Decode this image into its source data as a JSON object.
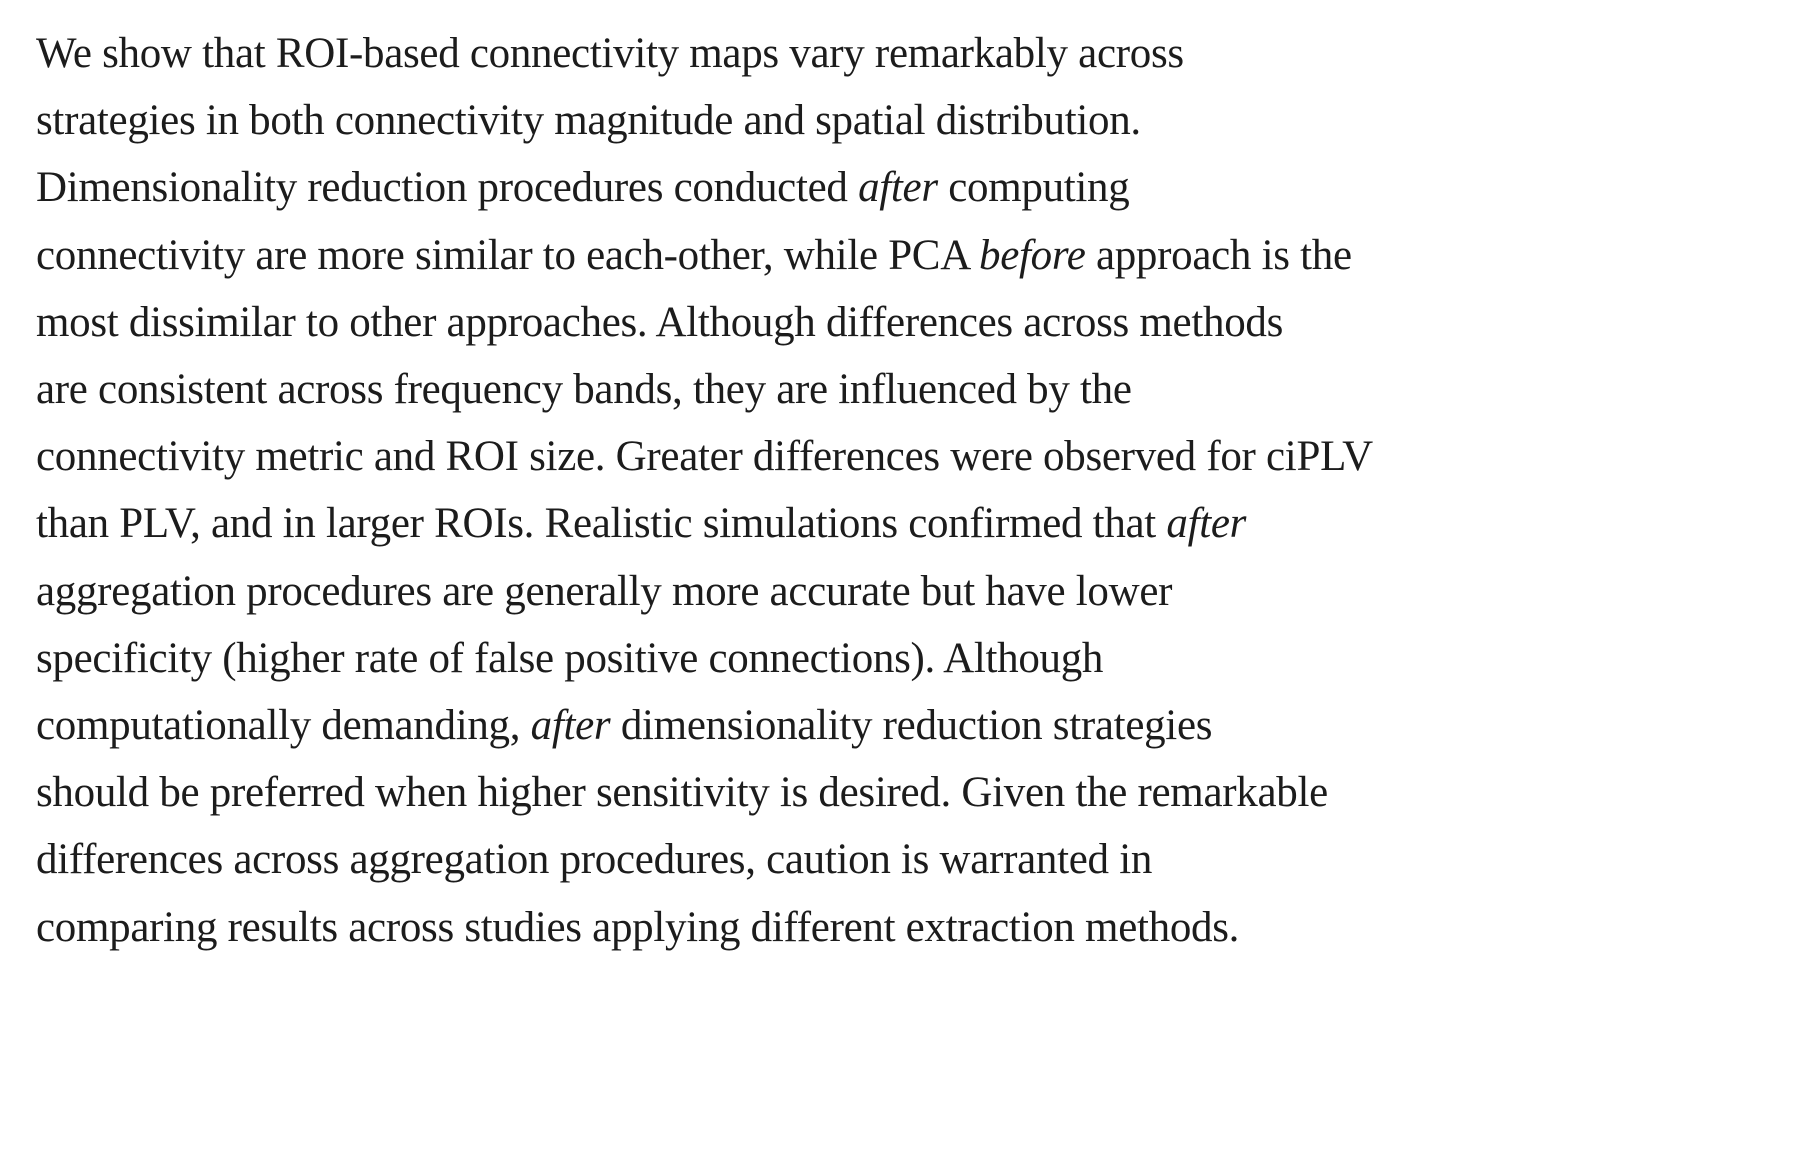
{
  "page": {
    "background_color": "#ffffff",
    "text_color": "#1c1c1c"
  },
  "abstract": {
    "full_text": "We show that ROI-based connectivity maps vary remarkably across strategies in both connectivity magnitude and spatial distribution. Dimensionality reduction procedures conducted after computing connectivity are more similar to each-other, while PCA before approach is the most dissimilar to other approaches. Although differences across methods are consistent across frequency bands, they are influenced by the connectivity metric and ROI size. Greater differences were observed for ciPLV than PLV, and in larger ROIs. Realistic simulations confirmed that after aggregation procedures are generally more accurate but have lower specificity (higher rate of false positive connections). Although computationally demanding, after dimensionality reduction strategies should be preferred when higher sensitivity is desired. Given the remarkable differences across aggregation procedures, caution is warranted in comparing results across studies applying different extraction methods.",
    "italic_words": [
      "after",
      "before",
      "after",
      "after"
    ],
    "lines": [
      [
        {
          "t": "We show that ROI-based connectivity maps vary remarkably across"
        }
      ],
      [
        {
          "t": "strategies in both connectivity magnitude and spatial distribution."
        }
      ],
      [
        {
          "t": "Dimensionality reduction procedures conducted "
        },
        {
          "t": "after",
          "i": true
        },
        {
          "t": " computing"
        }
      ],
      [
        {
          "t": "connectivity are more similar to each-other, while PCA "
        },
        {
          "t": "before",
          "i": true
        },
        {
          "t": " approach is the"
        }
      ],
      [
        {
          "t": "most dissimilar to other approaches. Although differences across methods"
        }
      ],
      [
        {
          "t": "are consistent across frequency bands, they are influenced by the"
        }
      ],
      [
        {
          "t": "connectivity metric and ROI size. Greater differences were observed for ciPLV"
        }
      ],
      [
        {
          "t": "than PLV, and in larger ROIs. Realistic simulations confirmed that "
        },
        {
          "t": "after",
          "i": true
        }
      ],
      [
        {
          "t": "aggregation procedures are generally more accurate but have lower"
        }
      ],
      [
        {
          "t": "specificity (higher rate of false positive connections). Although"
        }
      ],
      [
        {
          "t": "computationally demanding, "
        },
        {
          "t": "after",
          "i": true
        },
        {
          "t": " dimensionality reduction strategies"
        }
      ],
      [
        {
          "t": "should be preferred when higher sensitivity is desired. Given the remarkable"
        }
      ],
      [
        {
          "t": "differences across aggregation procedures, caution is warranted in"
        }
      ],
      [
        {
          "t": "comparing results across studies applying different extraction methods."
        }
      ]
    ]
  }
}
